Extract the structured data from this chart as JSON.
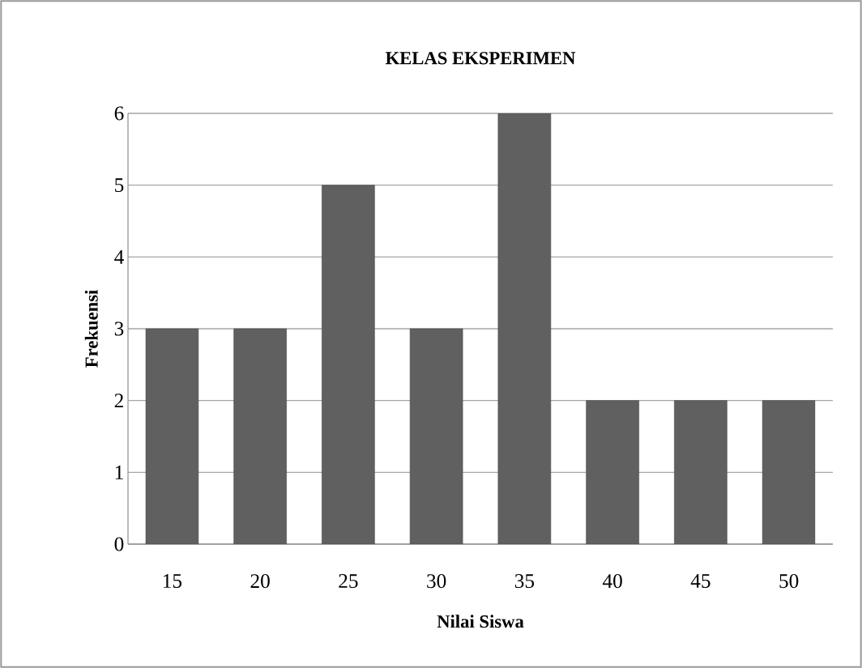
{
  "chart_data": {
    "type": "bar",
    "title": "KELAS EKSPERIMEN",
    "xlabel": "Nilai Siswa",
    "ylabel": "Frekuensi",
    "categories": [
      "15",
      "20",
      "25",
      "30",
      "35",
      "40",
      "45",
      "50"
    ],
    "values": [
      3,
      3,
      5,
      3,
      6,
      2,
      2,
      2
    ],
    "color": "#606060",
    "ylim": [
      0,
      6
    ],
    "yticks": [
      0,
      1,
      2,
      3,
      4,
      5,
      6
    ],
    "grid": "y"
  }
}
